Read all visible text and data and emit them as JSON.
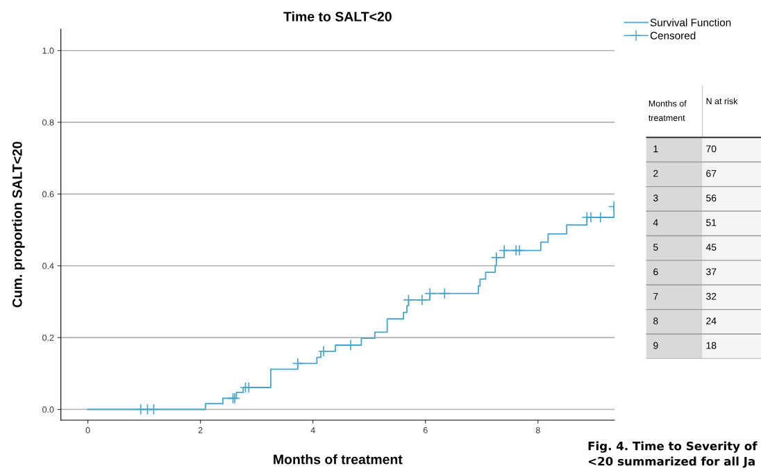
{
  "chart_data": [
    {
      "type": "step",
      "title": "Time to SALT<20",
      "xlabel": "Months of treatment",
      "ylabel": "Cum. proportion SALT<20",
      "xlim": [
        -0.48,
        9.36
      ],
      "ylim": [
        -0.03,
        1.06
      ],
      "xticks": [
        0,
        2,
        4,
        6,
        8
      ],
      "yticks": [
        {
          "value": 0,
          "label": "0.0"
        },
        {
          "value": 0.2,
          "label": "0.2"
        },
        {
          "value": 0.4,
          "label": "0.4"
        },
        {
          "value": 0.6,
          "label": "0.6"
        },
        {
          "value": 0.8,
          "label": "0.8"
        },
        {
          "value": 1,
          "label": "1.0"
        }
      ],
      "grid": "y",
      "legend": "top right",
      "line_style": "solid",
      "series": [
        {
          "name": "Survival Function",
          "type": "step",
          "color": "#4ba3c7",
          "marker": "none",
          "x": [
            0,
            2.09,
            2.4,
            2.64,
            2.76,
            3.25,
            3.73,
            4.07,
            4.14,
            4.4,
            4.86,
            5.1,
            5.32,
            5.61,
            5.67,
            5.7,
            6.08,
            6.94,
            6.97,
            7.07,
            7.24,
            7.26,
            7.4,
            8.05,
            8.18,
            8.51,
            8.87,
            9.35
          ],
          "values": [
            0,
            0.016,
            0.031,
            0.047,
            0.061,
            0.112,
            0.128,
            0.145,
            0.162,
            0.179,
            0.198,
            0.215,
            0.252,
            0.27,
            0.289,
            0.305,
            0.323,
            0.344,
            0.363,
            0.382,
            0.401,
            0.423,
            0.443,
            0.466,
            0.489,
            0.514,
            0.535,
            0.565
          ]
        },
        {
          "name": "Censored",
          "type": "scatter",
          "color": "#4ba3c7",
          "marker": "cross",
          "x": [
            0.94,
            1.06,
            1.17,
            2.58,
            2.61,
            2.8,
            2.86,
            3.73,
            4.19,
            4.67,
            5.7,
            5.94,
            6.08,
            6.34,
            7.26,
            7.4,
            7.61,
            7.67,
            8.87,
            8.94,
            9.11,
            9.35
          ],
          "values": [
            0,
            0,
            0,
            0.031,
            0.031,
            0.061,
            0.061,
            0.128,
            0.162,
            0.179,
            0.305,
            0.305,
            0.323,
            0.323,
            0.423,
            0.443,
            0.443,
            0.443,
            0.535,
            0.535,
            0.535,
            0.565
          ]
        }
      ],
      "annotations": [
        "Fig. 4. Time to Severity of",
        "<20 summarized for all Ja",
        "Months of treatment",
        "N at risk",
        "1",
        "70",
        "2",
        "67",
        "3",
        "56",
        "4",
        "51",
        "5",
        "45",
        "6",
        "37",
        "7",
        "32",
        "8",
        "24",
        "9",
        "18"
      ]
    }
  ]
}
